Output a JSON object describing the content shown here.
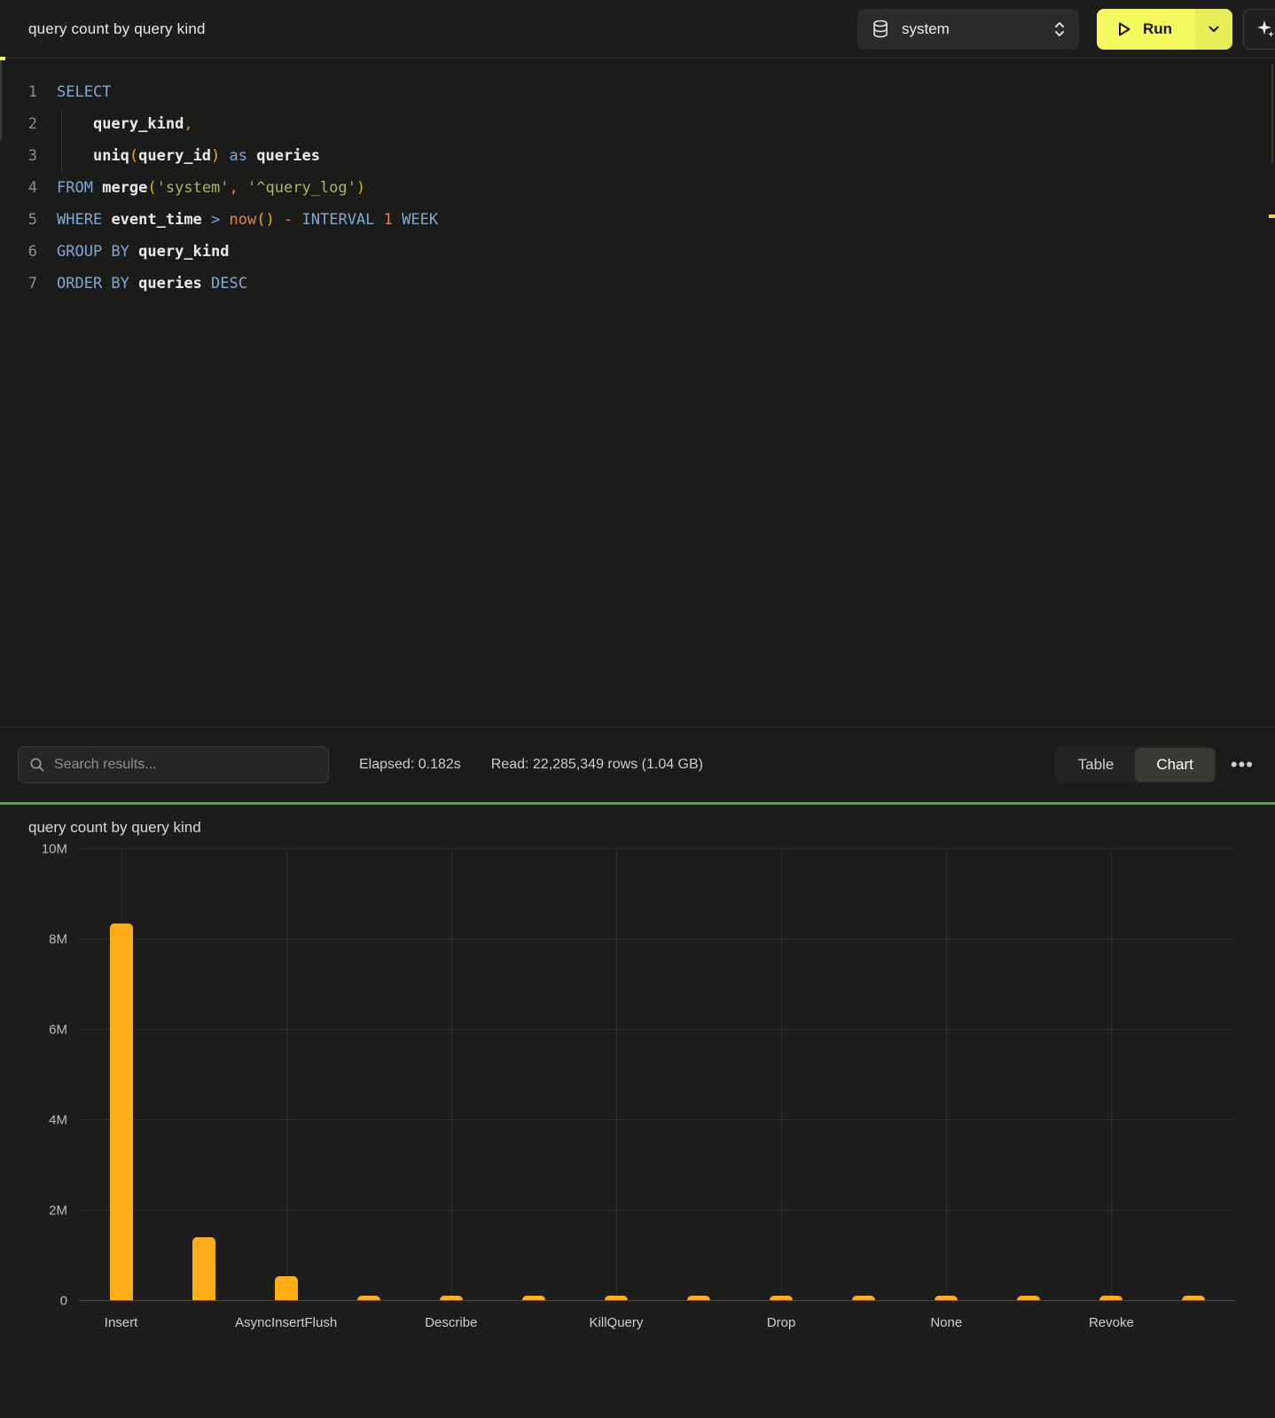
{
  "header": {
    "title": "query count by query kind",
    "database_selector": {
      "value": "system"
    },
    "run_button": {
      "label": "Run"
    }
  },
  "editor": {
    "lines": [
      {
        "n": "1",
        "tokens": [
          [
            "SELECT",
            "kw"
          ]
        ]
      },
      {
        "n": "2",
        "tokens": [
          [
            "    ",
            "pl"
          ],
          [
            "query_kind",
            "id"
          ],
          [
            ",",
            "op"
          ]
        ]
      },
      {
        "n": "3",
        "tokens": [
          [
            "    ",
            "pl"
          ],
          [
            "uniq",
            "id"
          ],
          [
            "(",
            "br"
          ],
          [
            "query_id",
            "id"
          ],
          [
            ")",
            "br"
          ],
          [
            " ",
            "pl"
          ],
          [
            "as",
            "kw"
          ],
          [
            " ",
            "pl"
          ],
          [
            "queries",
            "id"
          ]
        ]
      },
      {
        "n": "4",
        "tokens": [
          [
            "FROM",
            "kw"
          ],
          [
            " ",
            "pl"
          ],
          [
            "merge",
            "id"
          ],
          [
            "(",
            "br"
          ],
          [
            "'system'",
            "str"
          ],
          [
            ",",
            "op"
          ],
          [
            " ",
            "pl"
          ],
          [
            "'^query_log'",
            "str"
          ],
          [
            ")",
            "br"
          ]
        ]
      },
      {
        "n": "5",
        "tokens": [
          [
            "WHERE",
            "kw"
          ],
          [
            " ",
            "pl"
          ],
          [
            "event_time",
            "id"
          ],
          [
            " ",
            "pl"
          ],
          [
            ">",
            "kw"
          ],
          [
            " ",
            "pl"
          ],
          [
            "now",
            "op"
          ],
          [
            "(",
            "br"
          ],
          [
            ")",
            "br"
          ],
          [
            " ",
            "pl"
          ],
          [
            "-",
            "op"
          ],
          [
            " ",
            "pl"
          ],
          [
            "INTERVAL",
            "kw"
          ],
          [
            " ",
            "pl"
          ],
          [
            "1",
            "op"
          ],
          [
            " ",
            "pl"
          ],
          [
            "WEEK",
            "kw"
          ]
        ]
      },
      {
        "n": "6",
        "tokens": [
          [
            "GROUP BY",
            "kw"
          ],
          [
            " ",
            "pl"
          ],
          [
            "query_kind",
            "id"
          ]
        ]
      },
      {
        "n": "7",
        "tokens": [
          [
            "ORDER BY",
            "kw"
          ],
          [
            " ",
            "pl"
          ],
          [
            "queries",
            "id"
          ],
          [
            " ",
            "pl"
          ],
          [
            "DESC",
            "kw"
          ]
        ]
      }
    ]
  },
  "results_bar": {
    "search": {
      "placeholder": "Search results..."
    },
    "stats": {
      "elapsed": "Elapsed: 0.182s",
      "read": "Read: 22,285,349 rows (1.04 GB)"
    },
    "view_toggle": {
      "table_label": "Table",
      "chart_label": "Chart",
      "active": "Chart"
    },
    "more_label": "•••"
  },
  "chart": {
    "title": "query count by query kind"
  },
  "chart_data": {
    "type": "bar",
    "title": "query count by query kind",
    "categories": [
      "Insert",
      "",
      "AsyncInsertFlush",
      "",
      "Describe",
      "",
      "KillQuery",
      "",
      "Drop",
      "",
      "None",
      "",
      "Revoke",
      ""
    ],
    "values": [
      8330000,
      1400000,
      520000,
      100000,
      95000,
      90000,
      85000,
      80000,
      75000,
      70000,
      65000,
      60000,
      55000,
      50000
    ],
    "xlabel": "",
    "ylabel": "",
    "ylim": [
      0,
      10000000
    ],
    "yticks": [
      "0",
      "2M",
      "4M",
      "6M",
      "8M",
      "10M"
    ],
    "grid": true,
    "legend": false,
    "bar_color": "#ffae1a"
  },
  "colors": {
    "accent_yellow": "#f6fa5f",
    "run_split_yellow": "#e9ee58",
    "green_divider": "#55a445",
    "bar": "#ffae1a",
    "sql_keyword": "#7fa9d4",
    "sql_identifier": "#eaeaea",
    "sql_bracket": "#e5b400",
    "sql_string": "#a8b665",
    "sql_operator": "#e0854f"
  },
  "icons": {
    "database": "database-cylinder",
    "selector": "chevron-up-down",
    "run": "play-outline",
    "run_more": "chevron-down",
    "assistant": "sparkle",
    "search": "magnifier",
    "more": "ellipsis"
  }
}
